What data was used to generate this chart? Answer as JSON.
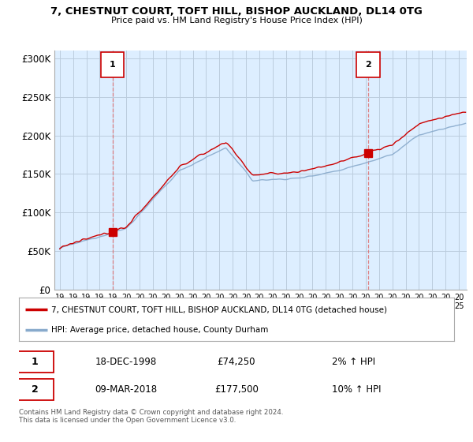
{
  "title": "7, CHESTNUT COURT, TOFT HILL, BISHOP AUCKLAND, DL14 0TG",
  "subtitle": "Price paid vs. HM Land Registry's House Price Index (HPI)",
  "ylabel_ticks": [
    "£0",
    "£50K",
    "£100K",
    "£150K",
    "£200K",
    "£250K",
    "£300K"
  ],
  "ytick_values": [
    0,
    50000,
    100000,
    150000,
    200000,
    250000,
    300000
  ],
  "ylim": [
    0,
    310000
  ],
  "xlim_start": 1994.6,
  "xlim_end": 2025.6,
  "sale1_date": 1998.96,
  "sale1_price": 74250,
  "sale1_label": "1",
  "sale2_date": 2018.18,
  "sale2_price": 177500,
  "sale2_label": "2",
  "legend_line1": "7, CHESTNUT COURT, TOFT HILL, BISHOP AUCKLAND, DL14 0TG (detached house)",
  "legend_line2": "HPI: Average price, detached house, County Durham",
  "info1_num": "1",
  "info1_date": "18-DEC-1998",
  "info1_price": "£74,250",
  "info1_hpi": "2% ↑ HPI",
  "info2_num": "2",
  "info2_date": "09-MAR-2018",
  "info2_price": "£177,500",
  "info2_hpi": "10% ↑ HPI",
  "footer": "Contains HM Land Registry data © Crown copyright and database right 2024.\nThis data is licensed under the Open Government Licence v3.0.",
  "line_color_red": "#cc0000",
  "line_color_blue": "#88aacc",
  "bg_color": "#ddeeff",
  "fig_bg": "#ffffff",
  "grid_color": "#bbccdd",
  "marker_color": "#cc0000",
  "dashed_color": "#dd6666"
}
